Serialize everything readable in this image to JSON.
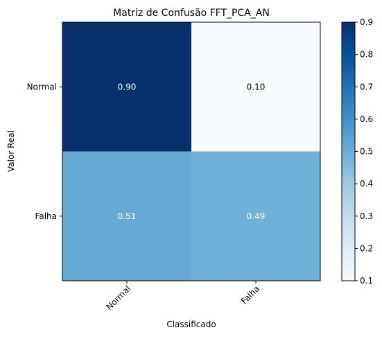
{
  "chart_data": {
    "type": "heatmap",
    "title": "Matriz de Confusão FFT_PCA_AN",
    "xlabel": "Classificado",
    "ylabel": "Valor Real",
    "x_categories": [
      "Normal",
      "Falha"
    ],
    "y_categories": [
      "Normal",
      "Falha"
    ],
    "values": [
      [
        0.9,
        0.1
      ],
      [
        0.51,
        0.49
      ]
    ],
    "cell_labels": [
      [
        "0.90",
        "0.10"
      ],
      [
        "0.51",
        "0.49"
      ]
    ],
    "colorscale": "Blues",
    "color_range": [
      0.1,
      0.9
    ],
    "colorbar_ticks": [
      "0.1",
      "0.2",
      "0.3",
      "0.4",
      "0.5",
      "0.6",
      "0.7",
      "0.8",
      "0.9"
    ],
    "grid": false
  }
}
